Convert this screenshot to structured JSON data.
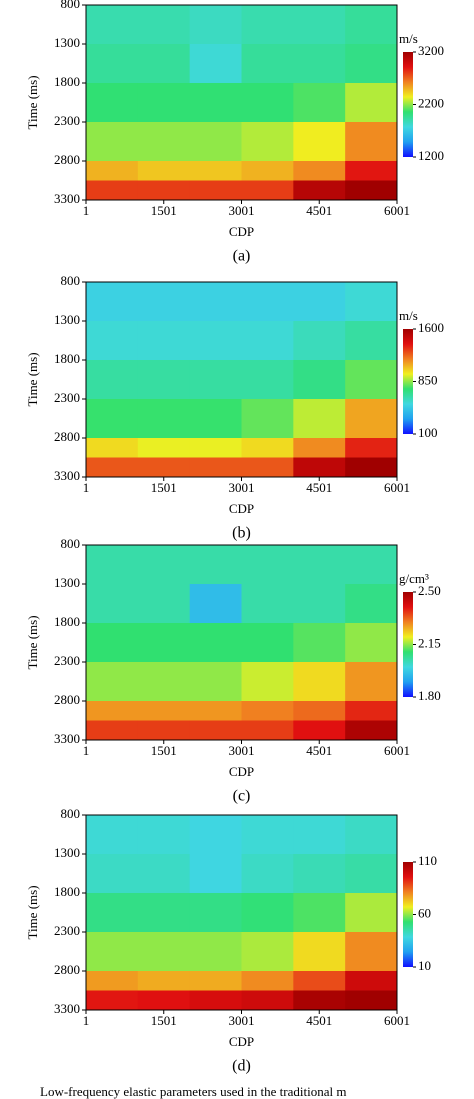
{
  "chart_data": [
    {
      "type": "heatmap",
      "xlabel": "CDP",
      "ylabel": "Time (ms)",
      "caption": "(a)",
      "colorbar_label": "m/s",
      "xlim": [
        1,
        6001
      ],
      "xticks": [
        1,
        1501,
        3001,
        4501,
        6001
      ],
      "ylim": [
        800,
        3300
      ],
      "y_inverted": true,
      "yticks": [
        800,
        1300,
        1800,
        2300,
        2800,
        3300
      ],
      "x_edges": [
        1,
        1001,
        2001,
        3001,
        4001,
        5001,
        6001
      ],
      "y_edges": [
        800,
        1300,
        1800,
        2300,
        2800,
        3050,
        3300
      ],
      "values": [
        [
          1900,
          1900,
          1850,
          1900,
          1900,
          1950
        ],
        [
          1950,
          1950,
          1800,
          1950,
          1950,
          2000
        ],
        [
          2050,
          2050,
          2050,
          2050,
          2100,
          2250
        ],
        [
          2200,
          2200,
          2200,
          2250,
          2350,
          2600
        ],
        [
          2500,
          2450,
          2450,
          2500,
          2600,
          2900
        ],
        [
          2800,
          2800,
          2800,
          2800,
          3100,
          3200
        ]
      ],
      "clim": [
        1200,
        3200
      ],
      "cticks": [
        1200,
        2200,
        3200
      ],
      "colormap": [
        "#1010ff",
        "#20a0f0",
        "#40d8e0",
        "#30e070",
        "#f0f020",
        "#f08020",
        "#e01010",
        "#a00000"
      ]
    },
    {
      "type": "heatmap",
      "xlabel": "CDP",
      "ylabel": "Time (ms)",
      "caption": "(b)",
      "colorbar_label": "m/s",
      "xlim": [
        1,
        6001
      ],
      "xticks": [
        1,
        1501,
        3001,
        4501,
        6001
      ],
      "ylim": [
        800,
        3300
      ],
      "y_inverted": true,
      "yticks": [
        800,
        1300,
        1800,
        2300,
        2800,
        3300
      ],
      "x_edges": [
        1,
        1001,
        2001,
        3001,
        4001,
        5001,
        6001
      ],
      "y_edges": [
        800,
        1300,
        1800,
        2300,
        2800,
        3050,
        3300
      ],
      "values": [
        [
          500,
          500,
          500,
          500,
          500,
          550
        ],
        [
          550,
          550,
          550,
          550,
          600,
          650
        ],
        [
          650,
          650,
          650,
          650,
          700,
          800
        ],
        [
          750,
          750,
          750,
          800,
          900,
          1100
        ],
        [
          1000,
          950,
          950,
          1000,
          1150,
          1350
        ],
        [
          1250,
          1250,
          1250,
          1250,
          1500,
          1600
        ]
      ],
      "clim": [
        100,
        1600
      ],
      "cticks": [
        100,
        850,
        1600
      ],
      "colormap": [
        "#1010ff",
        "#20a0f0",
        "#40d8e0",
        "#30e070",
        "#f0f020",
        "#f08020",
        "#e01010",
        "#a00000"
      ]
    },
    {
      "type": "heatmap",
      "xlabel": "CDP",
      "ylabel": "Time (ms)",
      "caption": "(c)",
      "colorbar_label": "g/cm³",
      "xlim": [
        1,
        6001
      ],
      "xticks": [
        1,
        1501,
        3001,
        4501,
        6001
      ],
      "ylim": [
        800,
        3300
      ],
      "y_inverted": true,
      "yticks": [
        800,
        1300,
        1800,
        2300,
        2800,
        3300
      ],
      "x_edges": [
        1,
        1001,
        2001,
        3001,
        4001,
        5001,
        6001
      ],
      "y_edges": [
        800,
        1300,
        1800,
        2300,
        2800,
        3050,
        3300
      ],
      "values": [
        [
          2.05,
          2.05,
          2.05,
          2.05,
          2.05,
          2.05
        ],
        [
          2.05,
          2.05,
          1.95,
          2.05,
          2.05,
          2.08
        ],
        [
          2.1,
          2.1,
          2.1,
          2.1,
          2.12,
          2.15
        ],
        [
          2.15,
          2.15,
          2.15,
          2.18,
          2.22,
          2.28
        ],
        [
          2.28,
          2.28,
          2.28,
          2.3,
          2.32,
          2.38
        ],
        [
          2.36,
          2.36,
          2.36,
          2.36,
          2.4,
          2.48
        ]
      ],
      "clim": [
        1.8,
        2.5
      ],
      "cticks": [
        {
          "value": 1.8,
          "label": "1.80"
        },
        {
          "value": 2.15,
          "label": "2.15"
        },
        {
          "value": 2.5,
          "label": "2.50"
        }
      ],
      "colormap": [
        "#1010ff",
        "#20a0f0",
        "#40d8e0",
        "#30e070",
        "#f0f020",
        "#f08020",
        "#e01010",
        "#a00000"
      ]
    },
    {
      "type": "heatmap",
      "xlabel": "CDP",
      "ylabel": "Time (ms)",
      "caption": "(d)",
      "xlim": [
        1,
        6001
      ],
      "xticks": [
        1,
        1501,
        3001,
        4501,
        6001
      ],
      "ylim": [
        800,
        3300
      ],
      "y_inverted": true,
      "yticks": [
        800,
        1300,
        1800,
        2300,
        2800,
        3300
      ],
      "x_edges": [
        1,
        1001,
        2001,
        3001,
        4001,
        5001,
        6001
      ],
      "y_edges": [
        800,
        1300,
        1800,
        2300,
        2800,
        3050,
        3300
      ],
      "values": [
        [
          40,
          40,
          38,
          40,
          40,
          42
        ],
        [
          42,
          42,
          38,
          42,
          44,
          46
        ],
        [
          50,
          50,
          50,
          52,
          55,
          62
        ],
        [
          60,
          60,
          60,
          62,
          70,
          80
        ],
        [
          78,
          76,
          76,
          80,
          88,
          100
        ],
        [
          95,
          96,
          98,
          100,
          108,
          110
        ]
      ],
      "clim": [
        10,
        110
      ],
      "cticks": [
        10,
        60,
        110
      ],
      "colormap": [
        "#1010ff",
        "#20a0f0",
        "#40d8e0",
        "#30e070",
        "#f0f020",
        "#f08020",
        "#e01010",
        "#a00000"
      ]
    }
  ],
  "figure_caption": "Low-frequency elastic parameters used in the traditional m"
}
